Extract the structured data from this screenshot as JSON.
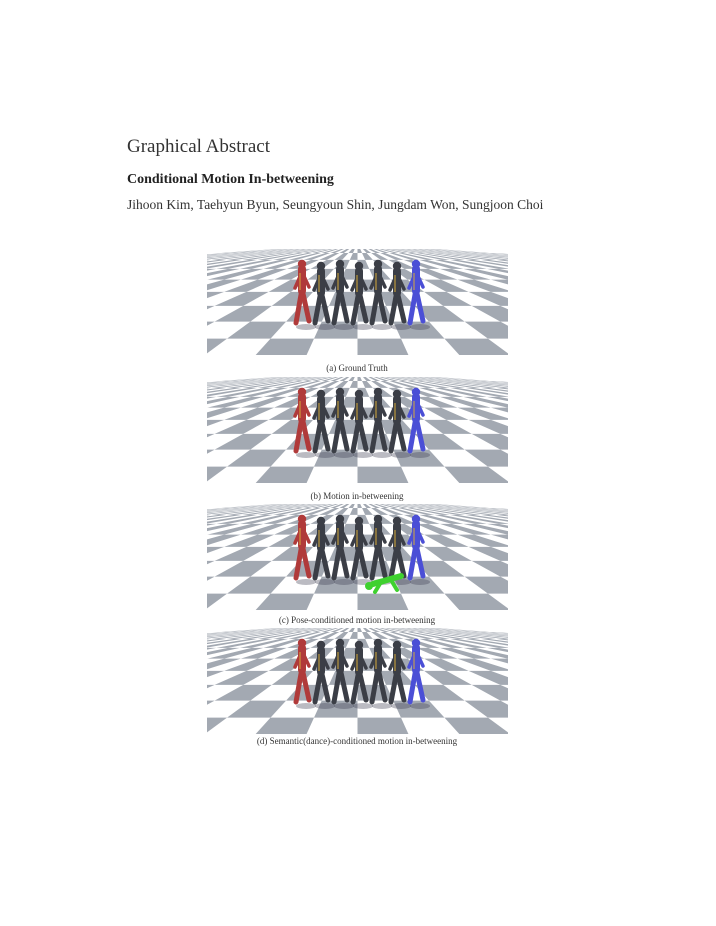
{
  "header": {
    "section_heading": "Graphical Abstract",
    "title": "Conditional Motion In-betweening",
    "authors": "Jihoon Kim, Taehyun Byun, Seungyoun Shin, Jungdam Won, Sungjoon Choi"
  },
  "figures": [
    {
      "caption": "(a) Ground Truth",
      "start_color": "#b03a3a",
      "end_color": "#4b4fd6",
      "highlight": false
    },
    {
      "caption": "(b) Motion in-betweening",
      "start_color": "#b03a3a",
      "end_color": "#4b4fd6",
      "highlight": false
    },
    {
      "caption": "(c) Pose-conditioned motion in-betweening",
      "start_color": "#b03a3a",
      "end_color": "#4b4fd6",
      "highlight": true,
      "highlight_color": "#3fd12f"
    },
    {
      "caption": "(d) Semantic(dance)-conditioned motion in-betweening",
      "start_color": "#b03a3a",
      "end_color": "#4b4fd6",
      "highlight": false
    }
  ],
  "colors": {
    "floor_dark": "#a3a9b2",
    "floor_light": "#ffffff",
    "figure_body": "#3b3e46",
    "figure_accent": "#d6a93a"
  }
}
